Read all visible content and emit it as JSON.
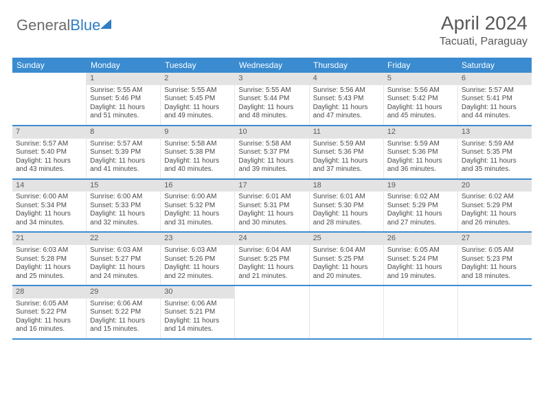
{
  "brand": {
    "text_gray": "General",
    "text_blue": "Blue"
  },
  "title": "April 2024",
  "location": "Tacuati, Paraguay",
  "colors": {
    "header_bg": "#3a8bd0",
    "header_text": "#ffffff",
    "daynum_bg": "#e3e3e3",
    "body_text": "#4a4a4a",
    "brand_gray": "#6b6b6b",
    "brand_blue": "#2f7dc4"
  },
  "fonts": {
    "title_size_pt": 21,
    "location_size_pt": 12,
    "dayhead_size_pt": 9,
    "cell_size_pt": 7.5
  },
  "day_headers": [
    "Sunday",
    "Monday",
    "Tuesday",
    "Wednesday",
    "Thursday",
    "Friday",
    "Saturday"
  ],
  "weeks": [
    [
      {
        "day": null
      },
      {
        "day": 1,
        "sunrise": "5:55 AM",
        "sunset": "5:46 PM",
        "daylight": "11 hours and 51 minutes."
      },
      {
        "day": 2,
        "sunrise": "5:55 AM",
        "sunset": "5:45 PM",
        "daylight": "11 hours and 49 minutes."
      },
      {
        "day": 3,
        "sunrise": "5:55 AM",
        "sunset": "5:44 PM",
        "daylight": "11 hours and 48 minutes."
      },
      {
        "day": 4,
        "sunrise": "5:56 AM",
        "sunset": "5:43 PM",
        "daylight": "11 hours and 47 minutes."
      },
      {
        "day": 5,
        "sunrise": "5:56 AM",
        "sunset": "5:42 PM",
        "daylight": "11 hours and 45 minutes."
      },
      {
        "day": 6,
        "sunrise": "5:57 AM",
        "sunset": "5:41 PM",
        "daylight": "11 hours and 44 minutes."
      }
    ],
    [
      {
        "day": 7,
        "sunrise": "5:57 AM",
        "sunset": "5:40 PM",
        "daylight": "11 hours and 43 minutes."
      },
      {
        "day": 8,
        "sunrise": "5:57 AM",
        "sunset": "5:39 PM",
        "daylight": "11 hours and 41 minutes."
      },
      {
        "day": 9,
        "sunrise": "5:58 AM",
        "sunset": "5:38 PM",
        "daylight": "11 hours and 40 minutes."
      },
      {
        "day": 10,
        "sunrise": "5:58 AM",
        "sunset": "5:37 PM",
        "daylight": "11 hours and 39 minutes."
      },
      {
        "day": 11,
        "sunrise": "5:59 AM",
        "sunset": "5:36 PM",
        "daylight": "11 hours and 37 minutes."
      },
      {
        "day": 12,
        "sunrise": "5:59 AM",
        "sunset": "5:36 PM",
        "daylight": "11 hours and 36 minutes."
      },
      {
        "day": 13,
        "sunrise": "5:59 AM",
        "sunset": "5:35 PM",
        "daylight": "11 hours and 35 minutes."
      }
    ],
    [
      {
        "day": 14,
        "sunrise": "6:00 AM",
        "sunset": "5:34 PM",
        "daylight": "11 hours and 34 minutes."
      },
      {
        "day": 15,
        "sunrise": "6:00 AM",
        "sunset": "5:33 PM",
        "daylight": "11 hours and 32 minutes."
      },
      {
        "day": 16,
        "sunrise": "6:00 AM",
        "sunset": "5:32 PM",
        "daylight": "11 hours and 31 minutes."
      },
      {
        "day": 17,
        "sunrise": "6:01 AM",
        "sunset": "5:31 PM",
        "daylight": "11 hours and 30 minutes."
      },
      {
        "day": 18,
        "sunrise": "6:01 AM",
        "sunset": "5:30 PM",
        "daylight": "11 hours and 28 minutes."
      },
      {
        "day": 19,
        "sunrise": "6:02 AM",
        "sunset": "5:29 PM",
        "daylight": "11 hours and 27 minutes."
      },
      {
        "day": 20,
        "sunrise": "6:02 AM",
        "sunset": "5:29 PM",
        "daylight": "11 hours and 26 minutes."
      }
    ],
    [
      {
        "day": 21,
        "sunrise": "6:03 AM",
        "sunset": "5:28 PM",
        "daylight": "11 hours and 25 minutes."
      },
      {
        "day": 22,
        "sunrise": "6:03 AM",
        "sunset": "5:27 PM",
        "daylight": "11 hours and 24 minutes."
      },
      {
        "day": 23,
        "sunrise": "6:03 AM",
        "sunset": "5:26 PM",
        "daylight": "11 hours and 22 minutes."
      },
      {
        "day": 24,
        "sunrise": "6:04 AM",
        "sunset": "5:25 PM",
        "daylight": "11 hours and 21 minutes."
      },
      {
        "day": 25,
        "sunrise": "6:04 AM",
        "sunset": "5:25 PM",
        "daylight": "11 hours and 20 minutes."
      },
      {
        "day": 26,
        "sunrise": "6:05 AM",
        "sunset": "5:24 PM",
        "daylight": "11 hours and 19 minutes."
      },
      {
        "day": 27,
        "sunrise": "6:05 AM",
        "sunset": "5:23 PM",
        "daylight": "11 hours and 18 minutes."
      }
    ],
    [
      {
        "day": 28,
        "sunrise": "6:05 AM",
        "sunset": "5:22 PM",
        "daylight": "11 hours and 16 minutes."
      },
      {
        "day": 29,
        "sunrise": "6:06 AM",
        "sunset": "5:22 PM",
        "daylight": "11 hours and 15 minutes."
      },
      {
        "day": 30,
        "sunrise": "6:06 AM",
        "sunset": "5:21 PM",
        "daylight": "11 hours and 14 minutes."
      },
      {
        "day": null
      },
      {
        "day": null
      },
      {
        "day": null
      },
      {
        "day": null
      }
    ]
  ],
  "labels": {
    "sunrise_prefix": "Sunrise: ",
    "sunset_prefix": "Sunset: ",
    "daylight_prefix": "Daylight: "
  }
}
